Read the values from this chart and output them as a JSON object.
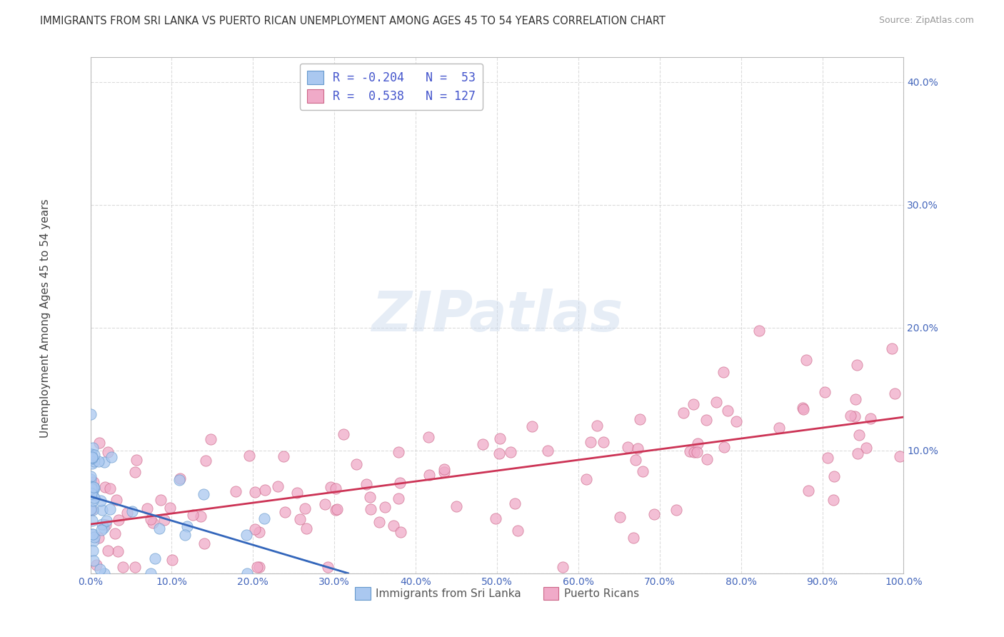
{
  "title": "IMMIGRANTS FROM SRI LANKA VS PUERTO RICAN UNEMPLOYMENT AMONG AGES 45 TO 54 YEARS CORRELATION CHART",
  "source": "Source: ZipAtlas.com",
  "ylabel": "Unemployment Among Ages 45 to 54 years",
  "xlim": [
    0.0,
    1.0
  ],
  "ylim": [
    0.0,
    0.42
  ],
  "xticks": [
    0.0,
    0.1,
    0.2,
    0.3,
    0.4,
    0.5,
    0.6,
    0.7,
    0.8,
    0.9,
    1.0
  ],
  "yticks": [
    0.0,
    0.1,
    0.2,
    0.3,
    0.4
  ],
  "xtick_labels": [
    "0.0%",
    "10.0%",
    "20.0%",
    "30.0%",
    "40.0%",
    "50.0%",
    "60.0%",
    "70.0%",
    "80.0%",
    "90.0%",
    "100.0%"
  ],
  "ytick_labels": [
    "",
    "10.0%",
    "20.0%",
    "30.0%",
    "40.0%"
  ],
  "series1_label": "Immigrants from Sri Lanka",
  "series2_label": "Puerto Ricans",
  "series1_color": "#aac8f0",
  "series2_color": "#f0aac8",
  "series1_edge_color": "#6699cc",
  "series2_edge_color": "#cc6688",
  "series1_R": -0.204,
  "series1_N": 53,
  "series2_R": 0.538,
  "series2_N": 127,
  "regression_color1": "#3366bb",
  "regression_color2": "#cc3355",
  "watermark": "ZIPatlas",
  "background_color": "#ffffff",
  "grid_color": "#cccccc"
}
